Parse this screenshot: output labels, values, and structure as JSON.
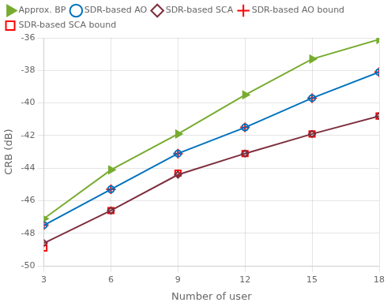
{
  "chart_data": {
    "type": "line",
    "xlabel": "Number of user",
    "ylabel": "CRB (dB)",
    "x": [
      3,
      6,
      9,
      12,
      15,
      18
    ],
    "series": [
      {
        "name": "Approx. BP",
        "color": "#77ac30",
        "marker": "triangle_right",
        "line_style": "solid",
        "values": [
          -47.1,
          -44.1,
          -41.9,
          -39.5,
          -37.3,
          -36.1
        ]
      },
      {
        "name": "SDR-based AO",
        "color": "#0072bd",
        "marker": "circle",
        "line_style": "solid",
        "values": [
          -47.5,
          -45.3,
          -43.1,
          -41.5,
          -39.7,
          -38.1
        ]
      },
      {
        "name": "SDR-based SCA",
        "color": "#7e2f3e",
        "marker": "diamond",
        "line_style": "solid",
        "values": [
          -48.6,
          -46.6,
          -44.4,
          -43.1,
          -41.9,
          -40.8
        ]
      },
      {
        "name": "SDR-based AO bound",
        "color": "#ff0000",
        "marker": "plus",
        "line_style": "none",
        "values": [
          -47.5,
          -45.3,
          -43.1,
          -41.5,
          -39.7,
          -38.1
        ]
      },
      {
        "name": "SDR-based SCA bound",
        "color": "#ff0000",
        "marker": "square",
        "line_style": "none",
        "values": [
          -48.9,
          -46.6,
          -44.3,
          -43.1,
          -41.9,
          -40.8
        ]
      }
    ],
    "xlim": [
      3,
      18
    ],
    "ylim": [
      -50,
      -36
    ],
    "xticks": [
      3,
      6,
      9,
      12,
      15,
      18
    ],
    "yticks": [
      -50,
      -48,
      -46,
      -44,
      -42,
      -40,
      -38,
      -36
    ],
    "grid": true,
    "legend": "upper left"
  }
}
